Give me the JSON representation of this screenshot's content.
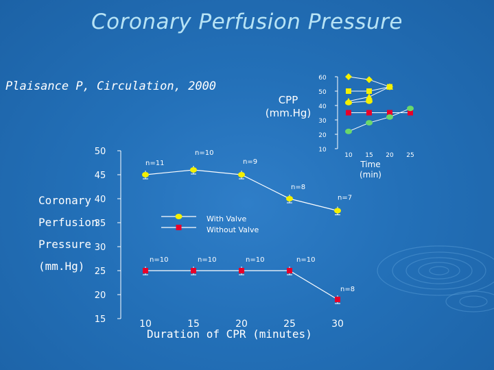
{
  "title": "Coronary Perfusion Pressure",
  "citation": "Plaisance P, Circulation, 2000",
  "chart_data": [
    {
      "type": "line",
      "ylabel_lines": [
        "Coronary",
        "Perfusion",
        "Pressure",
        "(mm.Hg)"
      ],
      "xlabel": "Duration of CPR (minutes)",
      "x_ticks": [
        10,
        15,
        20,
        25,
        30
      ],
      "y_ticks": [
        50,
        45,
        40,
        35,
        30,
        25,
        20,
        15
      ],
      "xlim": [
        10,
        30
      ],
      "ylim": [
        15,
        50
      ],
      "legend": "center",
      "series": [
        {
          "name": "With Valve",
          "color": "#f4f000",
          "x": [
            10,
            15,
            20,
            25,
            30
          ],
          "y": [
            45,
            46,
            45,
            40,
            37.5
          ],
          "n_labels": [
            "n=11",
            "n=10",
            "n=9",
            "n=8",
            "n=7"
          ]
        },
        {
          "name": "Without Valve",
          "color": "#e8002a",
          "x": [
            10,
            15,
            20,
            25,
            30
          ],
          "y": [
            25,
            25,
            25,
            25,
            19
          ],
          "n_labels": [
            "n=10",
            "n=10",
            "n=10",
            "n=10",
            "n=8"
          ]
        }
      ]
    },
    {
      "type": "line",
      "title": "",
      "ylabel_lines": [
        "CPP",
        "(mm.Hg)"
      ],
      "xlabel_lines": [
        "Time",
        "(min)"
      ],
      "x_ticks": [
        10,
        15,
        20,
        25
      ],
      "y_ticks": [
        60,
        50,
        40,
        30,
        20,
        10
      ],
      "xlim": [
        10,
        25
      ],
      "ylim": [
        10,
        60
      ],
      "series": [
        {
          "color": "#f4f000",
          "marker": "diamond",
          "x": [
            10,
            15,
            20
          ],
          "y": [
            60,
            58,
            53
          ]
        },
        {
          "color": "#f4f000",
          "marker": "square",
          "x": [
            10,
            15,
            20
          ],
          "y": [
            50,
            50,
            53
          ]
        },
        {
          "color": "#f4f000",
          "marker": "triangle",
          "x": [
            10,
            15,
            20
          ],
          "y": [
            43,
            46,
            53
          ]
        },
        {
          "color": "#f4f000",
          "marker": "circle",
          "x": [
            10,
            15
          ],
          "y": [
            42,
            43
          ]
        },
        {
          "color": "#e8002a",
          "marker": "square",
          "x": [
            10,
            15,
            20,
            25
          ],
          "y": [
            35,
            35,
            35,
            35
          ]
        },
        {
          "color": "#6ad86a",
          "marker": "circle",
          "x": [
            10,
            15,
            20,
            25
          ],
          "y": [
            22,
            28,
            32,
            38
          ]
        }
      ]
    }
  ]
}
